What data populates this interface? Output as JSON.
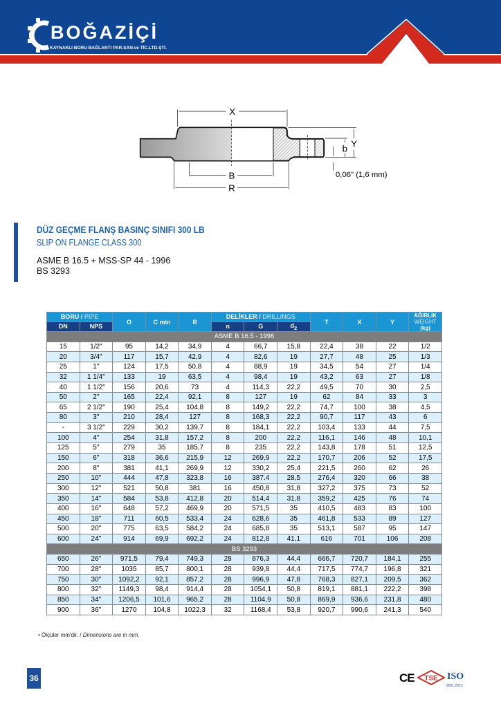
{
  "brand": {
    "name": "BOĞAZİÇİ",
    "subtitle": "KAYNAKLI BORU BAĞLANTI PAR.SAN.ve TİC.LTD.ŞTİ.",
    "colors": {
      "blue": "#0f4694",
      "red": "#d42a1e"
    }
  },
  "diagram": {
    "labels": {
      "x": "X",
      "b_upper": "B",
      "r": "R",
      "y": "Y",
      "b_lower": "b",
      "gap": "0,06\" (1,6 mm)"
    }
  },
  "heading": {
    "title": "DÜZ GEÇME FLANŞ BASINÇ SINIFI 300 LB",
    "subtitle": "SLIP ON FLANGE CLASS 300",
    "standards": [
      "ASME B 16.5 + MSS-SP 44 - 1996",
      "BS 3293"
    ]
  },
  "table": {
    "headers": {
      "pipe_tr": "BORU /",
      "pipe_en": " PIPE",
      "dn": "DN",
      "nps": "NPS",
      "o": "O",
      "cmin": "C min",
      "r": "R",
      "drill_tr": "DELİKLER /",
      "drill_en": " DRILLINGS",
      "n": "n",
      "g": "G",
      "d2": "d",
      "d2_sub": "2",
      "t": "T",
      "x": "X",
      "y": "Y",
      "weight_tr": "AĞIRLIK",
      "weight_en": "WEIGHT",
      "weight_unit": "(kg)"
    },
    "groups": [
      {
        "label": "ASME B 16.5 - 1996",
        "rows": [
          [
            "15",
            "1/2\"",
            "95",
            "14,2",
            "34,9",
            "4",
            "66,7",
            "15,8",
            "22,4",
            "38",
            "22",
            "1/2"
          ],
          [
            "20",
            "3/4\"",
            "117",
            "15,7",
            "42,9",
            "4",
            "82,6",
            "19",
            "27,7",
            "48",
            "25",
            "1/3"
          ],
          [
            "25",
            "1\"",
            "124",
            "17,5",
            "50,8",
            "4",
            "88,9",
            "19",
            "34,5",
            "54",
            "27",
            "1/4"
          ],
          [
            "32",
            "1 1/4\"",
            "133",
            "19",
            "63,5",
            "4",
            "98,4",
            "19",
            "43,2",
            "63",
            "27",
            "1/8"
          ],
          [
            "40",
            "1 1/2\"",
            "156",
            "20,6",
            "73",
            "4",
            "114,3",
            "22,2",
            "49,5",
            "70",
            "30",
            "2,5"
          ],
          [
            "50",
            "2\"",
            "165",
            "22,4",
            "92,1",
            "8",
            "127",
            "19",
            "62",
            "84",
            "33",
            "3"
          ],
          [
            "65",
            "2 1/2\"",
            "190",
            "25,4",
            "104,8",
            "8",
            "149,2",
            "22,2",
            "74,7",
            "100",
            "38",
            "4,5"
          ],
          [
            "80",
            "3\"",
            "210",
            "28,4",
            "127",
            "8",
            "168,3",
            "22,2",
            "90,7",
            "117",
            "43",
            "6"
          ],
          [
            "-",
            "3 1/2\"",
            "229",
            "30,2",
            "139,7",
            "8",
            "184,1",
            "22,2",
            "103,4",
            "133",
            "44",
            "7,5"
          ],
          [
            "100",
            "4\"",
            "254",
            "31,8",
            "157,2",
            "8",
            "200",
            "22,2",
            "116,1",
            "146",
            "48",
            "10,1"
          ],
          [
            "125",
            "5\"",
            "279",
            "35",
            "185,7",
            "8",
            "235",
            "22,2",
            "143,8",
            "178",
            "51",
            "12,5"
          ],
          [
            "150",
            "6\"",
            "318",
            "36,6",
            "215,9",
            "12",
            "269,9",
            "22,2",
            "170,7",
            "206",
            "52",
            "17,5"
          ],
          [
            "200",
            "8\"",
            "381",
            "41,1",
            "269,9",
            "12",
            "330,2",
            "25,4",
            "221,5",
            "260",
            "62",
            "26"
          ],
          [
            "250",
            "10\"",
            "444",
            "47,8",
            "323,8",
            "16",
            "387.4",
            "28,5",
            "276,4",
            "320",
            "66",
            "38"
          ],
          [
            "300",
            "12\"",
            "521",
            "50,8",
            "381",
            "16",
            "450,8",
            "31,8",
            "327,2",
            "375",
            "73",
            "52"
          ],
          [
            "350",
            "14\"",
            "584",
            "53,8",
            "412,8",
            "20",
            "514,4",
            "31,8",
            "359,2",
            "425",
            "76",
            "74"
          ],
          [
            "400",
            "16\"",
            "648",
            "57,2",
            "469,9",
            "20",
            "571,5",
            "35",
            "410,5",
            "483",
            "83",
            "100"
          ],
          [
            "450",
            "18\"",
            "711",
            "60,5",
            "533,4",
            "24",
            "628,6",
            "35",
            "461,8",
            "533",
            "89",
            "127"
          ],
          [
            "500",
            "20\"",
            "775",
            "63,5",
            "584,2",
            "24",
            "685,8",
            "35",
            "513,1",
            "587",
            "95",
            "147"
          ],
          [
            "600",
            "24\"",
            "914",
            "69,9",
            "692,2",
            "24",
            "812,8",
            "41,1",
            "616",
            "701",
            "106",
            "208"
          ]
        ]
      },
      {
        "label": "BS 3293",
        "rows": [
          [
            "650",
            "26\"",
            "971,5",
            "79,4",
            "749,3",
            "28",
            "876,3",
            "44,4",
            "666,7",
            "720,7",
            "184,1",
            "255"
          ],
          [
            "700",
            "28\"",
            "1035",
            "85,7",
            "800,1",
            "28",
            "939,8",
            "44,4",
            "717,5",
            "774,7",
            "196,8",
            "321"
          ],
          [
            "750",
            "30\"",
            "1092,2",
            "92,1",
            "857,2",
            "28",
            "996,9",
            "47,8",
            "768,3",
            "827,1",
            "209,5",
            "362"
          ],
          [
            "800",
            "32\"",
            "1149,3",
            "98,4",
            "914,4",
            "28",
            "1054,1",
            "50,8",
            "819,1",
            "881,1",
            "222,2",
            "398"
          ],
          [
            "850",
            "34\"",
            "1206,5",
            "101,6",
            "965,2",
            "28",
            "1104,9",
            "50,8",
            "869,9",
            "936,6",
            "231,8",
            "480"
          ],
          [
            "900",
            "36\"",
            "1270",
            "104,8",
            "1022,3",
            "32",
            "1168,4",
            "53,8",
            "920,7",
            "990,6",
            "241,3",
            "540"
          ]
        ]
      }
    ]
  },
  "note": {
    "tr": "• Ölçüler mm'dir. / ",
    "en": "Dimensions are in mm."
  },
  "page_number": "36",
  "certifications": {
    "ce": "CE",
    "tse": "TSE",
    "iso": "ISO",
    "iso_sub": "9001:2015"
  }
}
